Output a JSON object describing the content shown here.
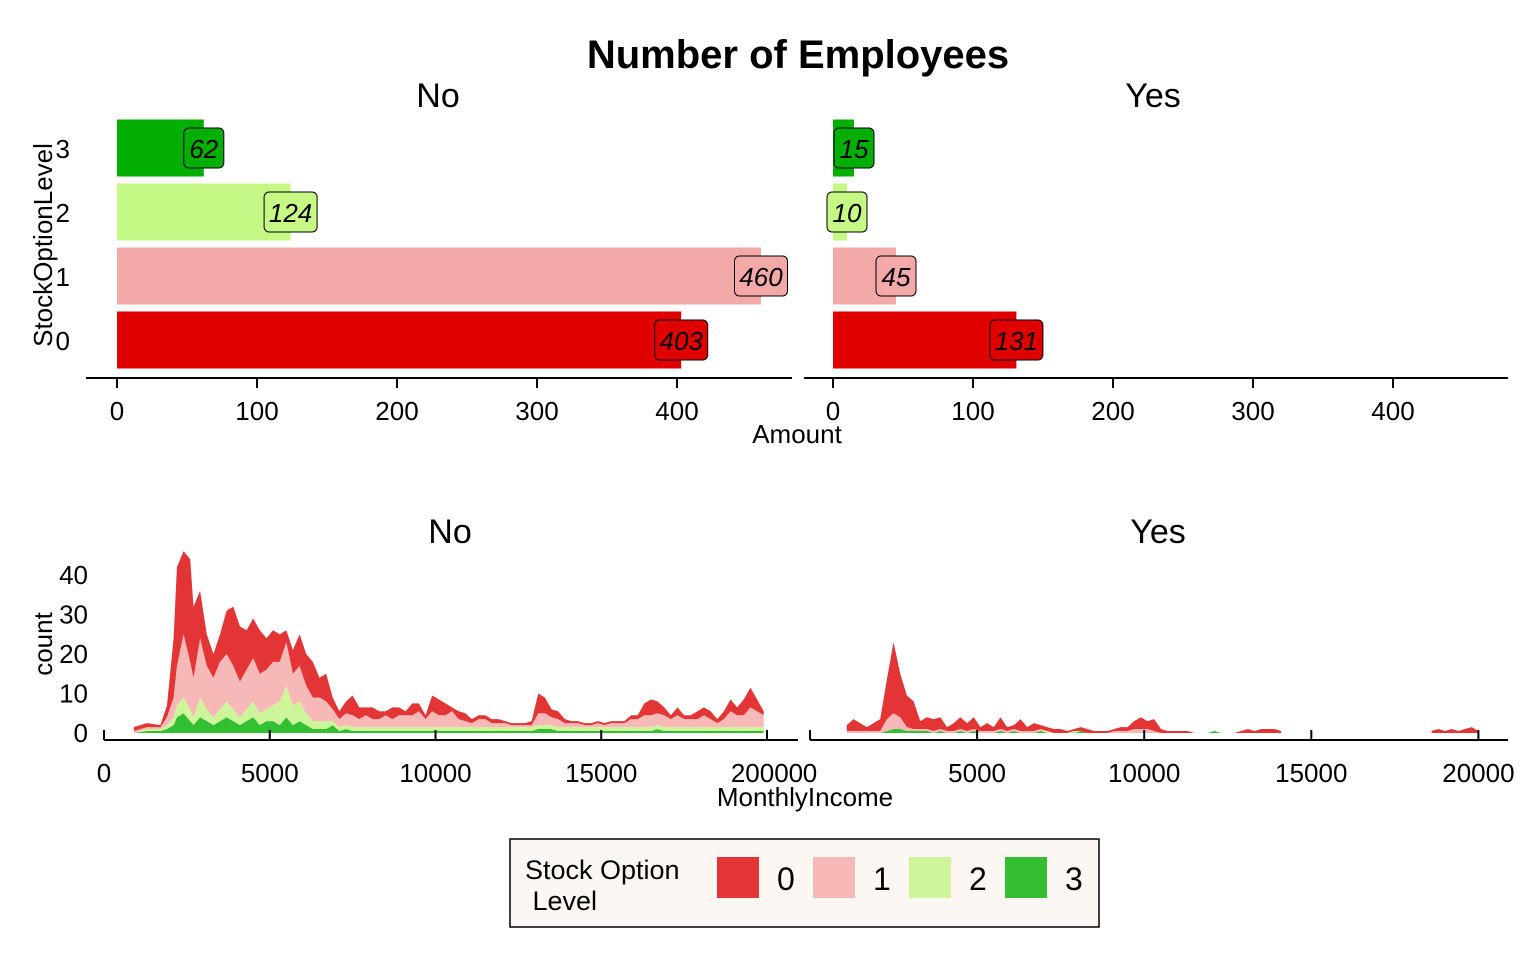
{
  "title": "Number of Employees",
  "colors": {
    "bar": {
      "0": "#E00000",
      "1": "#F4A9A9",
      "2": "#C5F884",
      "3": "#02AF02"
    },
    "area": {
      "0": "#E33535",
      "1": "#F7B8B8",
      "2": "#CFF59A",
      "3": "#32BF32"
    },
    "legend_bg": "#FDF7F3"
  },
  "legend": {
    "title_line1": "Stock Option",
    "title_line2": " Level",
    "items": [
      {
        "label": "0",
        "key": "0"
      },
      {
        "label": "1",
        "key": "1"
      },
      {
        "label": "2",
        "key": "2"
      },
      {
        "label": "3",
        "key": "3"
      }
    ]
  },
  "chart_data": [
    {
      "type": "bar",
      "orientation": "horizontal",
      "title": "Number of Employees",
      "ylabel": "StockOptionLevel",
      "xlabel": "Amount",
      "categories": [
        "0",
        "1",
        "2",
        "3"
      ],
      "xlim": [
        0,
        460
      ],
      "xticks": [
        "0",
        "100",
        "200",
        "300",
        "400"
      ],
      "panels": [
        {
          "name": "No",
          "values": [
            403,
            460,
            124,
            62
          ],
          "labels": [
            "403",
            "460",
            "124",
            "62"
          ]
        },
        {
          "name": "Yes",
          "values": [
            131,
            45,
            10,
            15
          ],
          "labels": [
            "131",
            "45",
            "10",
            "15"
          ]
        }
      ]
    },
    {
      "type": "area",
      "stacked": true,
      "xlabel": "MonthlyIncome",
      "ylabel": "count",
      "xlim": [
        0,
        20000
      ],
      "ylim": [
        0,
        45
      ],
      "xticks": [
        "0",
        "5000",
        "10000",
        "15000",
        "20000"
      ],
      "yticks": [
        "0",
        "10",
        "20",
        "30",
        "40"
      ],
      "series_order": [
        "3",
        "2",
        "1",
        "0"
      ],
      "panels": [
        {
          "name": "No",
          "x": [
            900,
            1300,
            1700,
            1900,
            2100,
            2200,
            2400,
            2600,
            2700,
            2900,
            3100,
            3300,
            3500,
            3700,
            3900,
            4100,
            4300,
            4500,
            4700,
            4900,
            5100,
            5300,
            5500,
            5700,
            5900,
            6100,
            6300,
            6500,
            6700,
            6900,
            7100,
            7300,
            7500,
            7700,
            7900,
            8100,
            8300,
            8500,
            8700,
            8900,
            9100,
            9300,
            9500,
            9700,
            9900,
            10100,
            10300,
            10500,
            10700,
            10900,
            11100,
            11300,
            11500,
            11700,
            11900,
            12100,
            12300,
            12500,
            12700,
            12900,
            13100,
            13300,
            13500,
            13700,
            13900,
            14100,
            14300,
            14500,
            14700,
            14900,
            15100,
            15300,
            15500,
            15700,
            15900,
            16100,
            16300,
            16500,
            16700,
            16900,
            17100,
            17300,
            17500,
            17700,
            17900,
            18100,
            18300,
            18500,
            18700,
            18900,
            19100,
            19300,
            19500,
            19700,
            19900
          ],
          "level_3": [
            0,
            0.5,
            0.5,
            1,
            2,
            4,
            5,
            3,
            2,
            4,
            3,
            2,
            3,
            4,
            3,
            2,
            3,
            4,
            2,
            3,
            3,
            2,
            4,
            2,
            3,
            2,
            1,
            1,
            1,
            2,
            0.5,
            1,
            0.5,
            0.5,
            0.5,
            0.5,
            0.5,
            0.5,
            0.5,
            0.5,
            0.5,
            0.5,
            0.5,
            0.5,
            0.5,
            0.5,
            0.5,
            0.5,
            0.5,
            0.5,
            0.5,
            0.5,
            0.5,
            0.5,
            0.5,
            0.5,
            0.5,
            0.5,
            0.5,
            0.5,
            1,
            1,
            1,
            0.5,
            0.5,
            0.5,
            0.5,
            0.5,
            0.5,
            0.5,
            0.5,
            0.5,
            0.5,
            0.5,
            0.5,
            0.5,
            0.5,
            0.5,
            1,
            0.5,
            0.5,
            0.5,
            0.5,
            0.5,
            0.5,
            0.5,
            0.5,
            0.5,
            0.5,
            0.5,
            0.5,
            0.5,
            0.5,
            0.5,
            0.5
          ],
          "level_2": [
            0,
            0.5,
            0.5,
            1,
            2,
            3,
            4,
            3,
            2,
            5,
            3,
            2,
            3,
            4,
            3,
            2,
            3,
            4,
            3,
            3,
            4,
            6,
            8,
            5,
            5,
            3,
            2,
            2,
            2,
            1,
            1,
            1,
            1,
            1,
            1,
            1,
            1,
            1,
            1,
            1,
            1,
            1,
            1,
            1,
            1,
            1,
            1,
            1,
            1,
            1,
            1,
            1,
            1,
            1,
            1,
            1,
            1,
            1,
            1,
            1,
            1,
            1,
            1,
            1,
            1,
            1,
            1,
            1,
            1,
            1,
            1,
            1,
            1,
            1,
            1,
            1,
            1,
            1,
            1,
            1,
            1,
            1,
            1,
            1,
            1,
            1,
            1,
            1,
            1,
            1,
            1,
            1,
            1,
            1,
            1
          ],
          "level_1": [
            0.5,
            0.5,
            0.5,
            2,
            5,
            10,
            16,
            12,
            10,
            15,
            11,
            10,
            12,
            12,
            11,
            9,
            10,
            11,
            10,
            10,
            11,
            10,
            11,
            8,
            9,
            7,
            6,
            6,
            5,
            3,
            2,
            3,
            3,
            2,
            3,
            2,
            2,
            3,
            2,
            3,
            3,
            3,
            4,
            2,
            4,
            3,
            3,
            4,
            2,
            1.5,
            1,
            2,
            2,
            1,
            1,
            1,
            0.5,
            0.5,
            0.5,
            0.5,
            3,
            3,
            2,
            2,
            1,
            1,
            1,
            0.5,
            0.5,
            1,
            0.5,
            1,
            1,
            1,
            2,
            2,
            3,
            3,
            3,
            3,
            2,
            3,
            2,
            2,
            2,
            3,
            2,
            1,
            2,
            4,
            3,
            3,
            5,
            4,
            3
          ],
          "level_0": [
            1,
            1,
            0.5,
            3,
            15,
            25,
            21,
            26,
            18,
            12,
            8,
            6,
            7,
            11,
            15,
            14,
            10,
            10,
            11,
            8,
            8,
            7,
            3,
            6,
            8,
            8,
            9,
            5,
            7,
            3,
            2,
            3,
            5,
            3,
            2,
            3,
            2,
            1,
            3,
            2,
            1,
            3,
            2,
            1,
            4,
            4,
            3,
            1,
            2,
            2,
            1,
            1,
            1,
            1,
            1,
            0.5,
            0.5,
            0.5,
            0.5,
            1,
            5,
            4,
            2,
            2,
            1,
            0.5,
            0.5,
            0.5,
            0.5,
            0.5,
            0.5,
            0.5,
            0.5,
            0.5,
            1,
            1,
            3,
            4,
            3,
            2,
            1,
            2,
            1,
            1,
            2,
            2,
            2,
            1,
            2,
            3,
            2,
            4,
            5,
            3,
            1
          ]
        },
        {
          "name": "Yes",
          "x": [
            1100,
            1300,
            1500,
            1700,
            1900,
            2100,
            2300,
            2500,
            2700,
            2900,
            3100,
            3300,
            3500,
            3700,
            3900,
            4100,
            4300,
            4500,
            4700,
            4900,
            5100,
            5300,
            5500,
            5700,
            5900,
            6100,
            6300,
            6500,
            6700,
            6900,
            7100,
            7300,
            7500,
            7700,
            7900,
            8100,
            8300,
            8500,
            8700,
            8900,
            9100,
            9300,
            9500,
            9700,
            9900,
            10100,
            10300,
            10500,
            10700,
            10900,
            11100,
            11300,
            11500,
            11700,
            11900,
            12100,
            12300,
            12500,
            12700,
            12900,
            13100,
            13300,
            13500,
            13700,
            13900,
            14100
          ],
          "level_3": [
            0,
            0,
            0,
            0,
            0,
            0,
            0.5,
            1,
            1,
            0.5,
            0.5,
            0.5,
            0.5,
            0,
            0.5,
            0,
            0,
            0.5,
            0,
            0.5,
            0,
            0,
            0,
            0.5,
            0,
            0.5,
            0,
            0,
            0,
            0.5,
            0,
            0,
            0,
            0,
            0,
            0.5,
            0,
            0,
            0,
            0,
            0,
            0,
            0,
            0,
            0,
            0,
            0,
            0,
            0,
            0,
            0,
            0,
            0,
            0,
            0,
            0.5,
            0,
            0,
            0,
            0,
            0,
            0,
            0,
            0,
            0,
            0
          ],
          "level_2": [
            0,
            0,
            0,
            0,
            0,
            0,
            0,
            0,
            0,
            0,
            0,
            0,
            0,
            0,
            0,
            0,
            0,
            0,
            0,
            0,
            0,
            0,
            0,
            0,
            0,
            0,
            0,
            0,
            0,
            0,
            0.5,
            0,
            0,
            0,
            0.5,
            0,
            0,
            0,
            0,
            0,
            0,
            0,
            0,
            0,
            0,
            0,
            0,
            0,
            0,
            0,
            0,
            0,
            0,
            0,
            0,
            0,
            0,
            0,
            0,
            0,
            0,
            0,
            0,
            0,
            0,
            0
          ],
          "level_1": [
            0.5,
            0.5,
            0.5,
            0.5,
            0.5,
            0.5,
            3,
            4,
            3,
            1,
            0.5,
            0.5,
            0.5,
            0.5,
            0.5,
            0.5,
            0.5,
            0.5,
            0.5,
            0.5,
            0.5,
            0.5,
            0.5,
            0.5,
            0.5,
            0.5,
            0.5,
            0.5,
            0.5,
            0.5,
            0,
            0,
            0,
            0,
            0,
            0,
            0,
            0,
            0,
            0,
            0.5,
            0.5,
            0.5,
            1,
            1,
            1,
            0.5,
            0,
            0,
            0,
            0,
            0,
            0,
            0,
            0,
            0,
            0,
            0,
            0,
            0,
            0,
            0,
            0,
            0,
            0,
            0
          ],
          "level_0": [
            1.5,
            3,
            2,
            1,
            2,
            3,
            10,
            18,
            11,
            8,
            7,
            2,
            3,
            3,
            3,
            1,
            2,
            3,
            2,
            3,
            1,
            2,
            1,
            3,
            1,
            1,
            3,
            1,
            2,
            1,
            1,
            1,
            1,
            0.5,
            0.5,
            1,
            1,
            0.5,
            0.5,
            0.5,
            0.5,
            1,
            1,
            2,
            3,
            2,
            3,
            1,
            0.5,
            0.5,
            0.5,
            0.5,
            0,
            0,
            0,
            0,
            0,
            0,
            0,
            0.5,
            1,
            0.5,
            1,
            1,
            1,
            0.5
          ],
          "tail": {
            "x": [
              18600,
              18800,
              19000,
              19200,
              19400,
              19600,
              19800,
              20000
            ],
            "level_0": [
              0.5,
              1,
              0.5,
              1,
              0.5,
              1,
              1.5,
              0.5
            ]
          }
        }
      ]
    }
  ]
}
